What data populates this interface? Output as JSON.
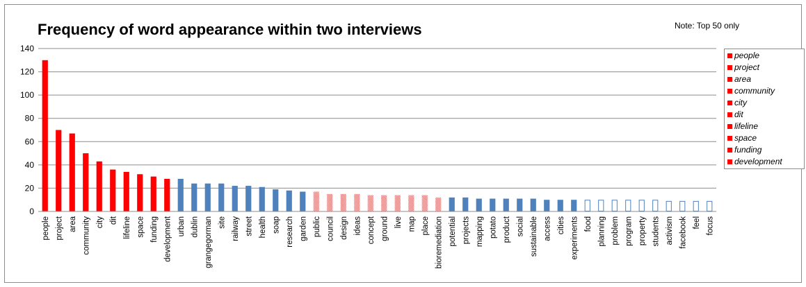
{
  "chart_data": {
    "type": "bar",
    "title": "Frequency of word appearance within two interviews",
    "note": "Note: Top 50 only",
    "xlabel": "",
    "ylabel": "",
    "ylim": [
      0,
      140
    ],
    "yticks": [
      0,
      20,
      40,
      60,
      80,
      100,
      120,
      140
    ],
    "grid": true,
    "legend_position": "right",
    "colors": {
      "red": "#ff0000",
      "blue": "#4f81bd",
      "dotted": "#e06666",
      "outline": "#4f81bd",
      "grid": "#8c8c8c"
    },
    "bars": [
      {
        "label": "people",
        "value": 130,
        "style": "red"
      },
      {
        "label": "project",
        "value": 70,
        "style": "red"
      },
      {
        "label": "area",
        "value": 67,
        "style": "red"
      },
      {
        "label": "community",
        "value": 50,
        "style": "red"
      },
      {
        "label": "city",
        "value": 43,
        "style": "red"
      },
      {
        "label": "dit",
        "value": 36,
        "style": "red"
      },
      {
        "label": "lifeline",
        "value": 34,
        "style": "red"
      },
      {
        "label": "space",
        "value": 32,
        "style": "red"
      },
      {
        "label": "funding",
        "value": 30,
        "style": "red"
      },
      {
        "label": "development",
        "value": 28,
        "style": "red"
      },
      {
        "label": "urban",
        "value": 28,
        "style": "blue"
      },
      {
        "label": "dublin",
        "value": 24,
        "style": "blue"
      },
      {
        "label": "grangegorman",
        "value": 24,
        "style": "blue"
      },
      {
        "label": "site",
        "value": 24,
        "style": "blue"
      },
      {
        "label": "railway",
        "value": 22,
        "style": "blue"
      },
      {
        "label": "street",
        "value": 22,
        "style": "blue"
      },
      {
        "label": "health",
        "value": 21,
        "style": "blue"
      },
      {
        "label": "soap",
        "value": 19,
        "style": "blue"
      },
      {
        "label": "research",
        "value": 18,
        "style": "blue"
      },
      {
        "label": "garden",
        "value": 17,
        "style": "blue"
      },
      {
        "label": "public",
        "value": 17,
        "style": "dotted"
      },
      {
        "label": "council",
        "value": 15,
        "style": "dotted"
      },
      {
        "label": "design",
        "value": 15,
        "style": "dotted"
      },
      {
        "label": "ideas",
        "value": 15,
        "style": "dotted"
      },
      {
        "label": "concept",
        "value": 14,
        "style": "dotted"
      },
      {
        "label": "ground",
        "value": 14,
        "style": "dotted"
      },
      {
        "label": "live",
        "value": 14,
        "style": "dotted"
      },
      {
        "label": "map",
        "value": 14,
        "style": "dotted"
      },
      {
        "label": "place",
        "value": 14,
        "style": "dotted"
      },
      {
        "label": "bioremediation",
        "value": 12,
        "style": "dotted"
      },
      {
        "label": "potential",
        "value": 12,
        "style": "blue"
      },
      {
        "label": "projects",
        "value": 12,
        "style": "blue"
      },
      {
        "label": "mapping",
        "value": 11,
        "style": "blue"
      },
      {
        "label": "potato",
        "value": 11,
        "style": "blue"
      },
      {
        "label": "product",
        "value": 11,
        "style": "blue"
      },
      {
        "label": "social",
        "value": 11,
        "style": "blue"
      },
      {
        "label": "sustainable",
        "value": 11,
        "style": "blue"
      },
      {
        "label": "access",
        "value": 10,
        "style": "blue"
      },
      {
        "label": "cities",
        "value": 10,
        "style": "blue"
      },
      {
        "label": "experiments",
        "value": 10,
        "style": "blue"
      },
      {
        "label": "food",
        "value": 10,
        "style": "outline"
      },
      {
        "label": "planning",
        "value": 10,
        "style": "outline"
      },
      {
        "label": "problem",
        "value": 10,
        "style": "outline"
      },
      {
        "label": "program",
        "value": 10,
        "style": "outline"
      },
      {
        "label": "property",
        "value": 10,
        "style": "outline"
      },
      {
        "label": "students",
        "value": 10,
        "style": "outline"
      },
      {
        "label": "activism",
        "value": 9,
        "style": "outline"
      },
      {
        "label": "facebook",
        "value": 9,
        "style": "outline"
      },
      {
        "label": "feel",
        "value": 9,
        "style": "outline"
      },
      {
        "label": "focus",
        "value": 9,
        "style": "outline"
      }
    ],
    "legend": [
      "people",
      "project",
      "area",
      "community",
      "city",
      "dit",
      "lifeline",
      "space",
      "funding",
      "development"
    ]
  }
}
